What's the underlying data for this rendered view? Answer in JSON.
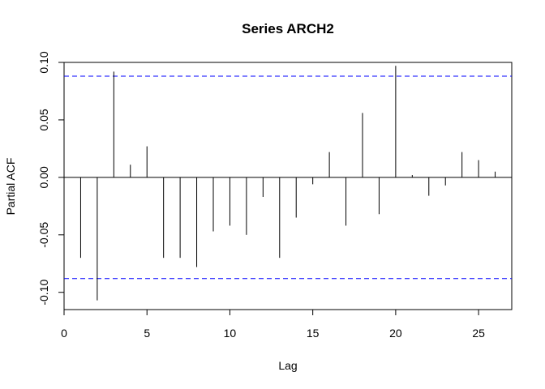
{
  "chart_data": {
    "type": "bar",
    "title": "Series  ARCH2",
    "xlabel": "Lag",
    "ylabel": "Partial ACF",
    "xlim": [
      0,
      27
    ],
    "ylim": [
      -0.115,
      0.1
    ],
    "x_ticks": [
      0,
      5,
      10,
      15,
      20,
      25
    ],
    "x_tick_labels": [
      "0",
      "5",
      "10",
      "15",
      "20",
      "25"
    ],
    "y_ticks": [
      -0.1,
      -0.05,
      0.0,
      0.05,
      0.1
    ],
    "y_tick_labels": [
      "-0.10",
      "-0.05",
      "0.00",
      "0.05",
      "0.10"
    ],
    "confidence_bound": 0.088,
    "confidence_color": "#0000ff",
    "lags": [
      1,
      2,
      3,
      4,
      5,
      6,
      7,
      8,
      9,
      10,
      11,
      12,
      13,
      14,
      15,
      16,
      17,
      18,
      19,
      20,
      21,
      22,
      23,
      24,
      25,
      26
    ],
    "values": [
      -0.07,
      -0.107,
      0.092,
      0.011,
      0.027,
      -0.07,
      -0.07,
      -0.078,
      -0.047,
      -0.042,
      -0.05,
      -0.017,
      -0.07,
      -0.035,
      -0.006,
      0.022,
      -0.042,
      0.056,
      -0.032,
      0.097,
      0.002,
      -0.016,
      -0.007,
      0.022,
      0.015,
      0.005
    ],
    "grid": false
  }
}
